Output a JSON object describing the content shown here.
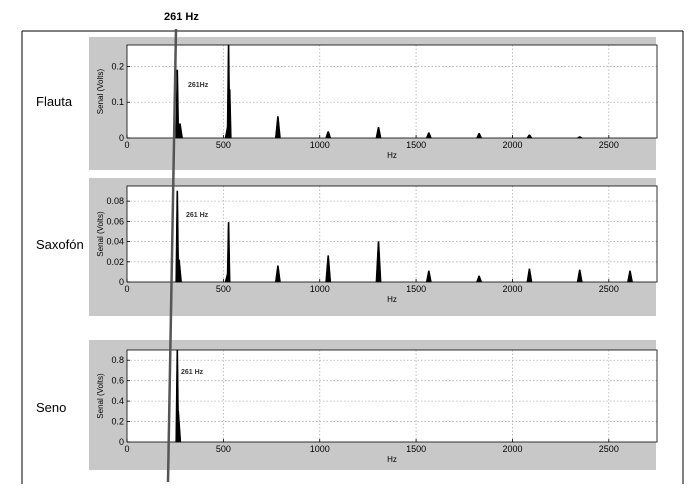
{
  "header_label": "261 Hz",
  "colors": {
    "frame": "#000000",
    "panel_background": "#c8c8c8",
    "plot_background": "#ffffff",
    "grid": "#b0b0b0",
    "data": "#000000",
    "marker_line": "#555555"
  },
  "chart_data": [
    {
      "type": "line",
      "row_label": "Flauta",
      "xlabel": "Hz",
      "ylabel": "Senal (Volts)",
      "xlim": [
        0,
        2750
      ],
      "ylim": [
        0,
        0.26
      ],
      "xticks": [
        0,
        500,
        1000,
        1500,
        2000,
        2500
      ],
      "yticks": [
        0,
        0.1,
        0.2
      ],
      "ytick_labels": [
        "0",
        "0.1",
        "0.2"
      ],
      "grid": true,
      "annotation": "261Hz",
      "peaks": [
        {
          "f": 261,
          "a": 0.19
        },
        {
          "f": 275,
          "a": 0.04
        },
        {
          "f": 522,
          "a": 0.03
        },
        {
          "f": 527,
          "a": 0.26
        },
        {
          "f": 533,
          "a": 0.135
        },
        {
          "f": 783,
          "a": 0.06
        },
        {
          "f": 1044,
          "a": 0.018
        },
        {
          "f": 1305,
          "a": 0.03
        },
        {
          "f": 1566,
          "a": 0.015
        },
        {
          "f": 1827,
          "a": 0.013
        },
        {
          "f": 2088,
          "a": 0.009
        },
        {
          "f": 2349,
          "a": 0.004
        }
      ]
    },
    {
      "type": "line",
      "row_label": "Saxofón",
      "xlabel": "Hz",
      "ylabel": "Senal (Volts)",
      "xlim": [
        0,
        2750
      ],
      "ylim": [
        0,
        0.095
      ],
      "xticks": [
        0,
        500,
        1000,
        1500,
        2000,
        2500
      ],
      "yticks": [
        0,
        0.02,
        0.04,
        0.06,
        0.08
      ],
      "ytick_labels": [
        "0",
        "0.02",
        "0.04",
        "0.06",
        "0.08"
      ],
      "grid": true,
      "annotation": "261 Hz",
      "peaks": [
        {
          "f": 261,
          "a": 0.09
        },
        {
          "f": 270,
          "a": 0.022
        },
        {
          "f": 522,
          "a": 0.008
        },
        {
          "f": 527,
          "a": 0.059
        },
        {
          "f": 783,
          "a": 0.016
        },
        {
          "f": 1044,
          "a": 0.026
        },
        {
          "f": 1305,
          "a": 0.04
        },
        {
          "f": 1566,
          "a": 0.011
        },
        {
          "f": 1827,
          "a": 0.006
        },
        {
          "f": 2088,
          "a": 0.013
        },
        {
          "f": 2349,
          "a": 0.012
        },
        {
          "f": 2610,
          "a": 0.011
        }
      ]
    },
    {
      "type": "line",
      "row_label": "Seno",
      "xlabel": "Hz",
      "ylabel": "Senal (Volts)",
      "xlim": [
        0,
        2750
      ],
      "ylim": [
        0,
        0.9
      ],
      "xticks": [
        0,
        500,
        1000,
        1500,
        2000,
        2500
      ],
      "yticks": [
        0,
        0.2,
        0.4,
        0.6,
        0.8
      ],
      "ytick_labels": [
        "0",
        "0.2",
        "0.4",
        "0.6",
        "0.8"
      ],
      "grid": true,
      "annotation": "261 Hz",
      "peaks": [
        {
          "f": 261,
          "a": 0.9
        },
        {
          "f": 266,
          "a": 0.3
        }
      ]
    }
  ]
}
